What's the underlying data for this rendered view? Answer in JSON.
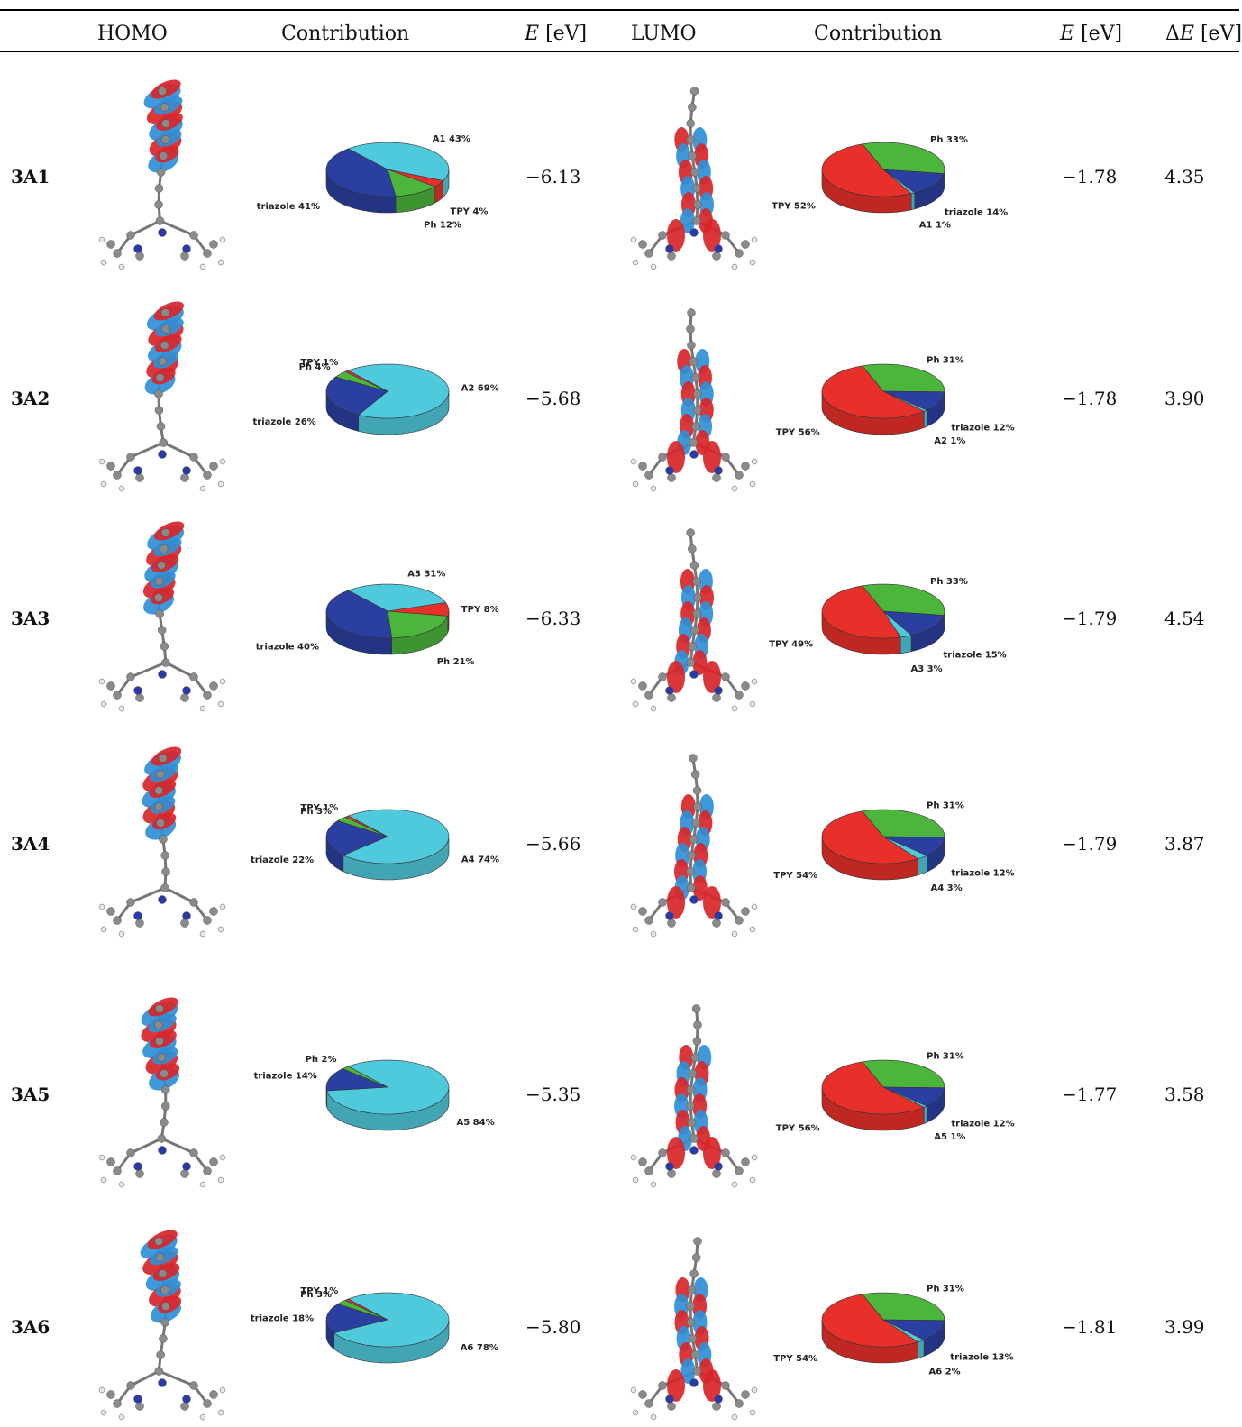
{
  "header": {
    "homo": "HOMO",
    "contribution_homo": "Contribution",
    "e_homo": "[eV]",
    "e_symbol": "E",
    "lumo": "LUMO",
    "contribution_lumo": "Contribution",
    "e_lumo": "[eV]",
    "de_symbol": "ΔE",
    "de_unit": "[eV]"
  },
  "colors": {
    "A": "#4fc9dc",
    "triazole": "#2b3fa0",
    "Ph": "#4bb53c",
    "TPY": "#e8302a",
    "orbital_red": "#d8262a",
    "orbital_blue": "#2f8fd6"
  },
  "rows": [
    {
      "label": "3A1",
      "e_homo": "−6.13",
      "e_lumo": "−1.78",
      "delta_e": "4.35",
      "homo_pie": [
        {
          "part": "A",
          "value": 43,
          "text": "A1 43%"
        },
        {
          "part": "TPY",
          "value": 4,
          "text": "TPY 4%"
        },
        {
          "part": "Ph",
          "value": 12,
          "text": "Ph 12%"
        },
        {
          "part": "triazole",
          "value": 41,
          "text": "triazole 41%"
        }
      ],
      "lumo_pie": [
        {
          "part": "Ph",
          "value": 33,
          "text": "Ph 33%"
        },
        {
          "part": "triazole",
          "value": 14,
          "text": "triazole 14%"
        },
        {
          "part": "A",
          "value": 1,
          "text": "A1 1%"
        },
        {
          "part": "TPY",
          "value": 52,
          "text": "TPY 52%"
        }
      ]
    },
    {
      "label": "3A2",
      "e_homo": "−5.68",
      "e_lumo": "−1.78",
      "delta_e": "3.90",
      "homo_pie": [
        {
          "part": "A",
          "value": 69,
          "text": "A2 69%"
        },
        {
          "part": "triazole",
          "value": 26,
          "text": "triazole 26%"
        },
        {
          "part": "Ph",
          "value": 4,
          "text": "Ph 4%"
        },
        {
          "part": "TPY",
          "value": 1,
          "text": "TPY 1%"
        }
      ],
      "lumo_pie": [
        {
          "part": "Ph",
          "value": 31,
          "text": "Ph 31%"
        },
        {
          "part": "triazole",
          "value": 12,
          "text": "triazole 12%"
        },
        {
          "part": "A",
          "value": 1,
          "text": "A2 1%"
        },
        {
          "part": "TPY",
          "value": 56,
          "text": "TPY 56%"
        }
      ]
    },
    {
      "label": "3A3",
      "e_homo": "−6.33",
      "e_lumo": "−1.79",
      "delta_e": "4.54",
      "homo_pie": [
        {
          "part": "A",
          "value": 31,
          "text": "A3 31%"
        },
        {
          "part": "TPY",
          "value": 8,
          "text": "TPY 8%"
        },
        {
          "part": "Ph",
          "value": 21,
          "text": "Ph 21%"
        },
        {
          "part": "triazole",
          "value": 40,
          "text": "triazole 40%"
        }
      ],
      "lumo_pie": [
        {
          "part": "Ph",
          "value": 33,
          "text": "Ph 33%"
        },
        {
          "part": "triazole",
          "value": 15,
          "text": "triazole 15%"
        },
        {
          "part": "A",
          "value": 3,
          "text": "A3 3%"
        },
        {
          "part": "TPY",
          "value": 49,
          "text": "TPY 49%"
        }
      ]
    },
    {
      "label": "3A4",
      "e_homo": "−5.66",
      "e_lumo": "−1.79",
      "delta_e": "3.87",
      "homo_pie": [
        {
          "part": "A",
          "value": 74,
          "text": "A4 74%"
        },
        {
          "part": "triazole",
          "value": 22,
          "text": "triazole 22%"
        },
        {
          "part": "Ph",
          "value": 3,
          "text": "Ph 3%"
        },
        {
          "part": "TPY",
          "value": 1,
          "text": "TPY 1%"
        }
      ],
      "lumo_pie": [
        {
          "part": "Ph",
          "value": 31,
          "text": "Ph 31%"
        },
        {
          "part": "triazole",
          "value": 12,
          "text": "triazole 12%"
        },
        {
          "part": "A",
          "value": 3,
          "text": "A4 3%"
        },
        {
          "part": "TPY",
          "value": 54,
          "text": "TPY 54%"
        }
      ]
    },
    {
      "label": "3A5",
      "e_homo": "−5.35",
      "e_lumo": "−1.77",
      "delta_e": "3.58",
      "homo_pie": [
        {
          "part": "A",
          "value": 84,
          "text": "A5 84%"
        },
        {
          "part": "triazole",
          "value": 14,
          "text": "triazole 14%"
        },
        {
          "part": "Ph",
          "value": 2,
          "text": "Ph 2%"
        }
      ],
      "lumo_pie": [
        {
          "part": "Ph",
          "value": 31,
          "text": "Ph 31%"
        },
        {
          "part": "triazole",
          "value": 12,
          "text": "triazole 12%"
        },
        {
          "part": "A",
          "value": 1,
          "text": "A5 1%"
        },
        {
          "part": "TPY",
          "value": 56,
          "text": "TPY 56%"
        }
      ]
    },
    {
      "label": "3A6",
      "e_homo": "−5.80",
      "e_lumo": "−1.81",
      "delta_e": "3.99",
      "homo_pie": [
        {
          "part": "A",
          "value": 78,
          "text": "A6 78%"
        },
        {
          "part": "triazole",
          "value": 18,
          "text": "triazole 18%"
        },
        {
          "part": "Ph",
          "value": 3,
          "text": "Ph 3%"
        },
        {
          "part": "TPY",
          "value": 1,
          "text": "TPY 1%"
        }
      ],
      "lumo_pie": [
        {
          "part": "Ph",
          "value": 31,
          "text": "Ph 31%"
        },
        {
          "part": "triazole",
          "value": 13,
          "text": "triazole 13%"
        },
        {
          "part": "A",
          "value": 2,
          "text": "A6 2%"
        },
        {
          "part": "TPY",
          "value": 54,
          "text": "TPY 54%"
        }
      ]
    }
  ]
}
